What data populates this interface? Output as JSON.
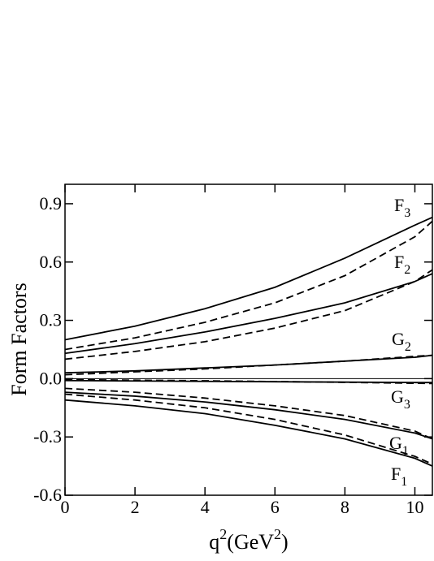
{
  "chart_data": {
    "type": "line",
    "y_label": "Form Factors",
    "x_label": [
      "q",
      "2",
      "(GeV",
      "2",
      ")"
    ],
    "x": [
      0,
      2,
      4,
      6,
      8,
      10,
      10.5
    ],
    "xlim": [
      0,
      10.5
    ],
    "xticks": [
      0,
      2,
      4,
      6,
      8,
      10
    ],
    "ylim": [
      -0.6,
      1.0
    ],
    "yticks": [
      0.9,
      0.6,
      0.3,
      {
        "value": 0,
        "label": "0.0"
      },
      -0.3,
      -0.6
    ],
    "zero_line": true,
    "series": [
      {
        "color": "#000000",
        "dash": false,
        "values": [
          0.2,
          0.27,
          0.36,
          0.47,
          0.62,
          0.79,
          0.83
        ]
      },
      {
        "color": "#000000",
        "dash": true,
        "values": [
          0.15,
          0.21,
          0.29,
          0.39,
          0.53,
          0.73,
          0.81
        ]
      },
      {
        "color": "#000000",
        "dash": false,
        "values": [
          0.13,
          0.18,
          0.24,
          0.31,
          0.39,
          0.5,
          0.54
        ]
      },
      {
        "color": "#000000",
        "dash": true,
        "values": [
          0.1,
          0.14,
          0.19,
          0.26,
          0.35,
          0.5,
          0.56
        ]
      },
      {
        "color": "#000000",
        "dash": false,
        "values": [
          0.03,
          0.04,
          0.055,
          0.07,
          0.09,
          0.11,
          0.12
        ]
      },
      {
        "color": "#000000",
        "dash": true,
        "values": [
          0.02,
          0.035,
          0.05,
          0.07,
          0.09,
          0.115,
          0.12
        ]
      },
      {
        "color": "#000000",
        "dash": false,
        "values": [
          -0.01,
          -0.012,
          -0.014,
          -0.016,
          -0.018,
          -0.02,
          -0.02
        ]
      },
      {
        "color": "#000000",
        "dash": true,
        "values": [
          -0.005,
          -0.008,
          -0.011,
          -0.015,
          -0.019,
          -0.024,
          -0.025
        ]
      },
      {
        "color": "#000000",
        "dash": false,
        "values": [
          -0.07,
          -0.09,
          -0.12,
          -0.16,
          -0.21,
          -0.28,
          -0.31
        ]
      },
      {
        "color": "#000000",
        "dash": true,
        "values": [
          -0.05,
          -0.07,
          -0.1,
          -0.14,
          -0.19,
          -0.27,
          -0.31
        ]
      },
      {
        "color": "#000000",
        "dash": false,
        "values": [
          -0.11,
          -0.14,
          -0.18,
          -0.24,
          -0.31,
          -0.41,
          -0.45
        ]
      },
      {
        "color": "#000000",
        "dash": true,
        "values": [
          -0.08,
          -0.11,
          -0.15,
          -0.21,
          -0.29,
          -0.4,
          -0.44
        ]
      }
    ],
    "curve_labels": [
      {
        "base": "F",
        "sub": "3"
      },
      {
        "base": "F",
        "sub": "2"
      },
      {
        "base": "G",
        "sub": "2"
      },
      {
        "base": "G",
        "sub": "3"
      },
      {
        "base": "G",
        "sub": "1"
      },
      {
        "base": "F",
        "sub": "1"
      }
    ]
  }
}
